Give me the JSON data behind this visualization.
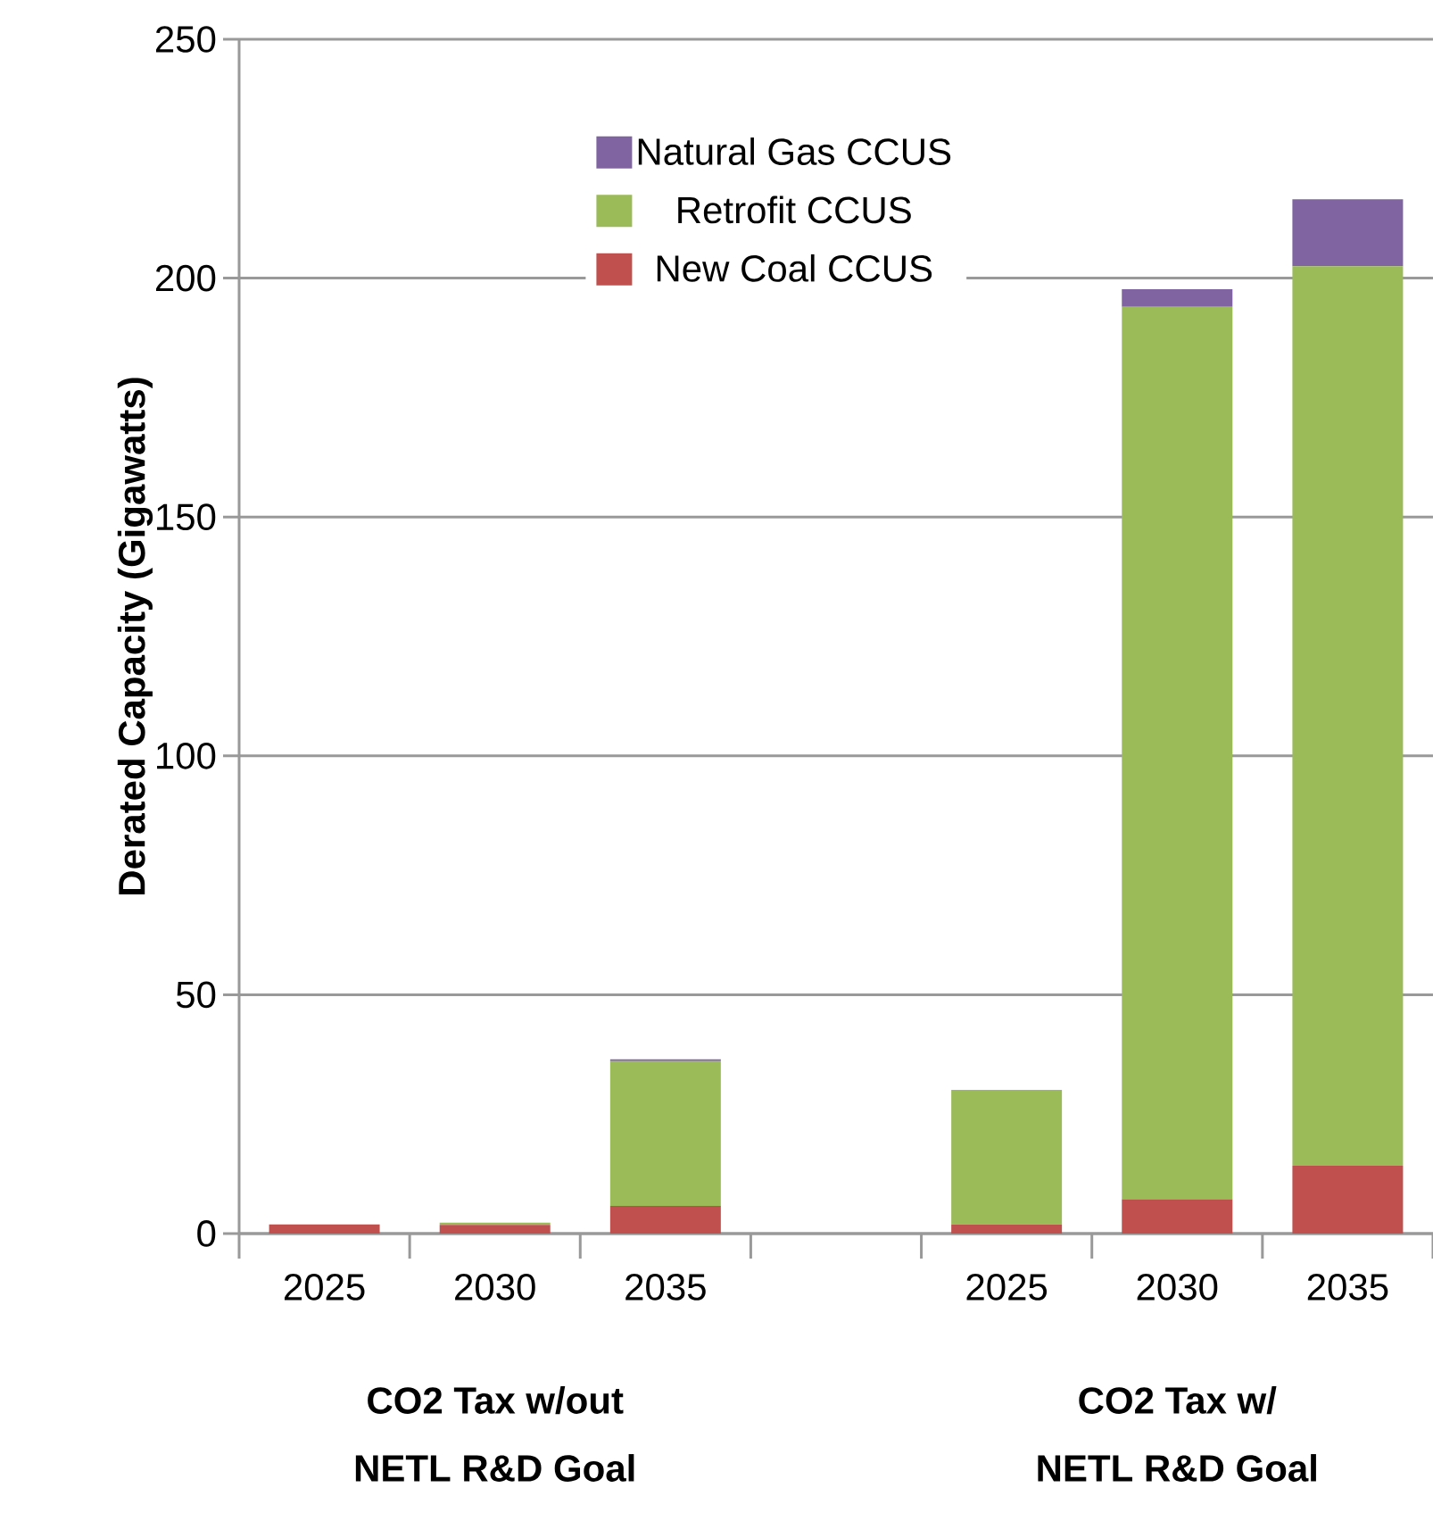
{
  "chart_data": {
    "type": "bar",
    "stacked": true,
    "ylabel": "Derated Capacity (Gigawatts)",
    "categories": [
      "2025",
      "2030",
      "2035",
      null,
      "2025",
      "2030",
      "2035"
    ],
    "series": [
      {
        "name": "New Coal CCUS",
        "color": "#c0504d",
        "values": [
          1.9,
          1.8,
          5.8,
          null,
          1.9,
          7.2,
          14.2
        ]
      },
      {
        "name": "Retrofit CCUS",
        "color": "#9bbb59",
        "values": [
          0,
          0.5,
          30.3,
          null,
          28.2,
          186.8,
          188.3
        ]
      },
      {
        "name": "Natural Gas CCUS",
        "color": "#8064a2",
        "values": [
          0,
          0,
          0.4,
          null,
          0,
          3.7,
          14.0
        ]
      }
    ],
    "ylim": [
      0,
      250
    ],
    "yticks": [
      0,
      50,
      100,
      150,
      200,
      250
    ],
    "grid": "y",
    "legend": "top",
    "annotations": [
      "CO2 Tax w/out",
      "NETL R&D Goal",
      "CO2 Tax w/",
      "NETL R&D Goal"
    ]
  }
}
